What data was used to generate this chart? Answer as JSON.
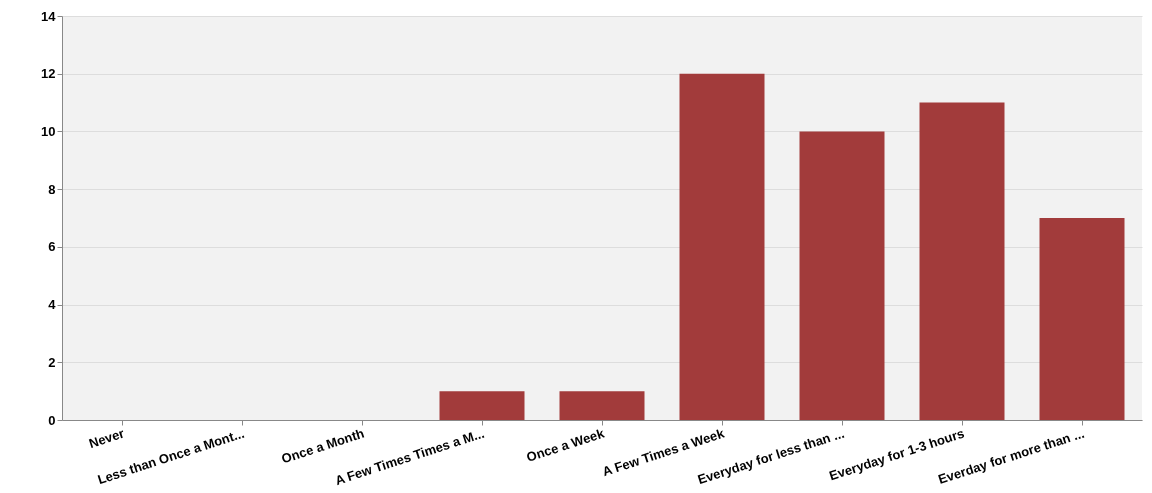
{
  "chart_data": {
    "type": "bar",
    "categories": [
      "Never",
      "Less than Once a Mont...",
      "Once a Month",
      "A Few Times Times a M...",
      "Once a Week",
      "A Few Times a Week",
      "Everyday for less than ...",
      "Everyday for 1-3 hours",
      "Everday for more than ..."
    ],
    "values": [
      0,
      0,
      0,
      1,
      1,
      12,
      10,
      11,
      7
    ],
    "color": "#a23b3b",
    "ylim": [
      0,
      14
    ],
    "yticks": [
      0,
      2,
      4,
      6,
      8,
      10,
      12,
      14
    ],
    "grid": "y"
  }
}
